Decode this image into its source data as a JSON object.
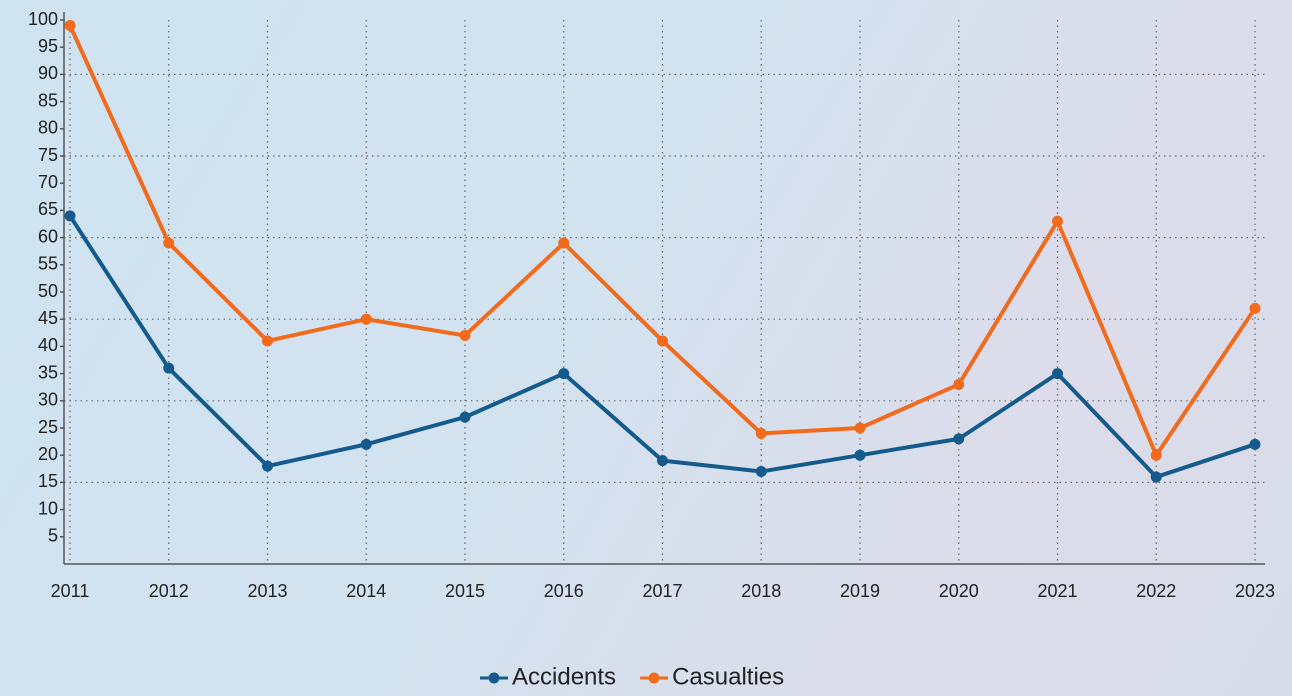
{
  "chart_data": {
    "type": "line",
    "categories": [
      "2011",
      "2012",
      "2013",
      "2014",
      "2015",
      "2016",
      "2017",
      "2018",
      "2019",
      "2020",
      "2021",
      "2022",
      "2023"
    ],
    "series": [
      {
        "name": "Accidents",
        "color": "#145a8c",
        "values": [
          64,
          36,
          18,
          22,
          27,
          35,
          19,
          17,
          20,
          23,
          35,
          16,
          22
        ]
      },
      {
        "name": "Casualties",
        "color": "#f26a1b",
        "values": [
          99,
          59,
          41,
          45,
          42,
          59,
          41,
          24,
          25,
          33,
          63,
          20,
          47
        ]
      }
    ],
    "ylim": [
      0,
      100
    ],
    "yticks": [
      5,
      10,
      15,
      20,
      25,
      30,
      35,
      40,
      45,
      50,
      55,
      60,
      65,
      70,
      75,
      80,
      85,
      90,
      95,
      100
    ],
    "ygrid": [
      15,
      30,
      45,
      60,
      75,
      90
    ],
    "grid": true,
    "legend": "bottom"
  }
}
